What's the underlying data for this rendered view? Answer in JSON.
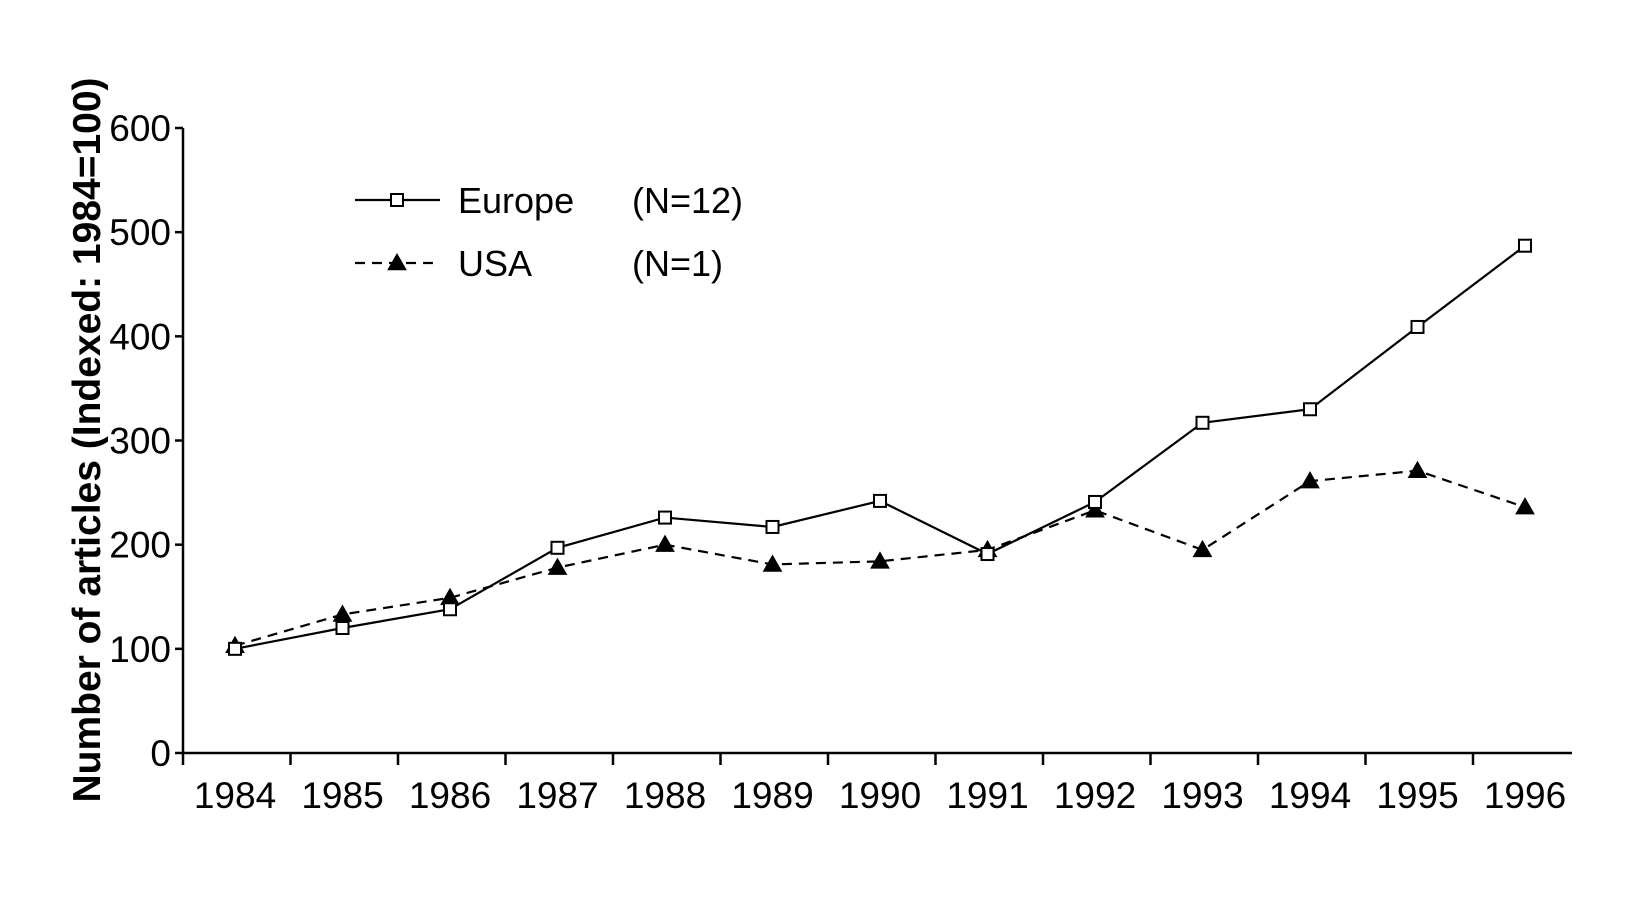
{
  "colors": {
    "background": "#ffffff",
    "ink": "#000000"
  },
  "chart_data": {
    "type": "line",
    "title": "",
    "xlabel": "",
    "ylabel": "Number of articles (Indexed: 1984=100)",
    "x": [
      "1984",
      "1985",
      "1986",
      "1987",
      "1988",
      "1989",
      "1990",
      "1991",
      "1992",
      "1993",
      "1994",
      "1995",
      "1996"
    ],
    "ylim": [
      0,
      600
    ],
    "yticks": [
      "0",
      "100",
      "200",
      "300",
      "400",
      "500",
      "600"
    ],
    "grid": false,
    "legend_position": "top-left",
    "series": [
      {
        "name": "Europe",
        "n_label": "(N=12)",
        "marker": "open-square",
        "line_style": "solid",
        "values": [
          100,
          120,
          138,
          197,
          226,
          217,
          242,
          191,
          241,
          317,
          330,
          409,
          487
        ]
      },
      {
        "name": "USA",
        "n_label": "(N=1)",
        "marker": "filled-triangle",
        "line_style": "dashed",
        "values": [
          103,
          133,
          149,
          178,
          200,
          181,
          184,
          195,
          233,
          195,
          261,
          271,
          236
        ]
      }
    ]
  }
}
